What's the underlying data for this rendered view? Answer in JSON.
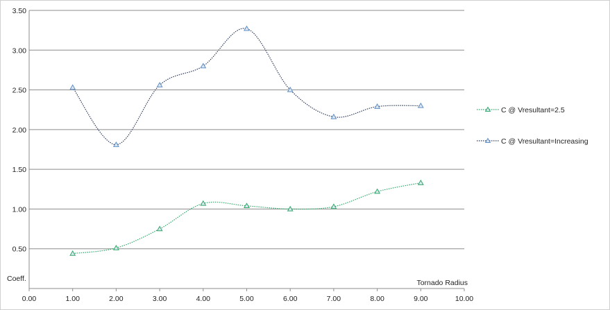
{
  "chart_data": {
    "type": "line",
    "xlabel": "Tornado Radius",
    "ylabel": "Coeff.",
    "xlim": [
      0,
      10
    ],
    "ylim": [
      0,
      3.5
    ],
    "x_ticks": [
      "0.00",
      "1.00",
      "2.00",
      "3.00",
      "4.00",
      "5.00",
      "6.00",
      "7.00",
      "8.00",
      "9.00",
      "10.00"
    ],
    "y_ticks": [
      "0.50",
      "1.00",
      "1.50",
      "2.00",
      "2.50",
      "3.00",
      "3.50"
    ],
    "grid": "horizontal",
    "legend_position": "right",
    "series": [
      {
        "name": "C @ Vresultant=2.5",
        "color": "#2fa86a",
        "marker": "triangle",
        "x": [
          1,
          2,
          3,
          4,
          5,
          6,
          7,
          8,
          9
        ],
        "values": [
          0.44,
          0.51,
          0.75,
          1.07,
          1.04,
          1.0,
          1.03,
          1.22,
          1.33
        ]
      },
      {
        "name": "C @ Vresultant=Increasing",
        "color": "#2e3a5a",
        "marker_color": "#5f8fc7",
        "marker": "triangle",
        "x": [
          1,
          2,
          3,
          4,
          5,
          6,
          7,
          8,
          9
        ],
        "values": [
          2.53,
          1.81,
          2.56,
          2.8,
          3.27,
          2.5,
          2.16,
          2.29,
          2.3
        ]
      }
    ]
  }
}
